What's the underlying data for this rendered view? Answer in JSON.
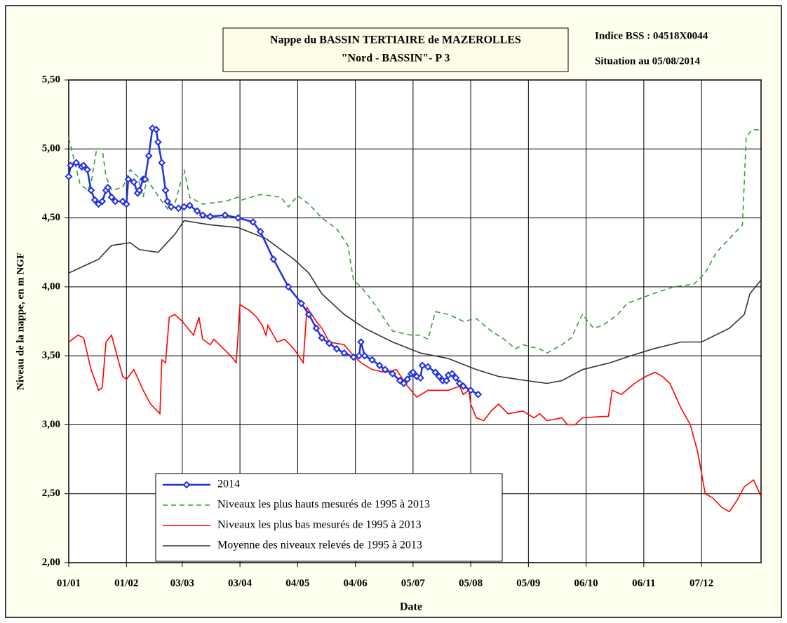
{
  "chart_data": {
    "type": "line",
    "title": "Nappe du BASSIN TERTIAIRE de MAZEROLLES",
    "subtitle": "\"Nord - BASSIN\"- P 3",
    "annotations": [
      "Indice BSS : 04518X0044",
      "Situation au 05/08/2014"
    ],
    "xlabel": "Date",
    "ylabel": "Niveau de la nappe, en m NGF",
    "xlim": [
      0,
      372
    ],
    "ylim": [
      2,
      5.5
    ],
    "xticks": [
      {
        "value": 0,
        "label": "01/01"
      },
      {
        "value": 31,
        "label": "01/02"
      },
      {
        "value": 61,
        "label": "03/03"
      },
      {
        "value": 92,
        "label": "03/04"
      },
      {
        "value": 123,
        "label": "04/05"
      },
      {
        "value": 154,
        "label": "04/06"
      },
      {
        "value": 185,
        "label": "05/07"
      },
      {
        "value": 216,
        "label": "05/08"
      },
      {
        "value": 247,
        "label": "05/09"
      },
      {
        "value": 278,
        "label": "06/10"
      },
      {
        "value": 309,
        "label": "06/11"
      },
      {
        "value": 340,
        "label": "07/12"
      }
    ],
    "yticks": [
      {
        "value": 2,
        "label": "2,00"
      },
      {
        "value": 2.5,
        "label": "2,50"
      },
      {
        "value": 3,
        "label": "3,00"
      },
      {
        "value": 3.5,
        "label": "3,50"
      },
      {
        "value": 4,
        "label": "4,00"
      },
      {
        "value": 4.5,
        "label": "4,50"
      },
      {
        "value": 5,
        "label": "5,00"
      },
      {
        "value": 5.5,
        "label": "5,50"
      }
    ],
    "grid": true,
    "legend": "lower left",
    "series": [
      {
        "name": "2014",
        "color": "#1f2fe0",
        "marker": "diamond",
        "dashed": false,
        "x": [
          0,
          1,
          4,
          7,
          8,
          10,
          12,
          14,
          16,
          18,
          20,
          21,
          23,
          25,
          29,
          31,
          32,
          35,
          37,
          38,
          40,
          41,
          43,
          45,
          47,
          48,
          50,
          52,
          53,
          55,
          59,
          62,
          65,
          69,
          72,
          76,
          84,
          91,
          99,
          103,
          110,
          118,
          125,
          129,
          133,
          136,
          140,
          144,
          148,
          153,
          156,
          157,
          159,
          163,
          167,
          170,
          174,
          178,
          180,
          182,
          184,
          185,
          187,
          189,
          190,
          193,
          197,
          199,
          201,
          203,
          204,
          206,
          208,
          210,
          212,
          216,
          220
        ],
        "values": [
          4.8,
          4.88,
          4.9,
          4.87,
          4.88,
          4.85,
          4.7,
          4.63,
          4.6,
          4.62,
          4.7,
          4.72,
          4.65,
          4.62,
          4.62,
          4.6,
          4.78,
          4.76,
          4.68,
          4.7,
          4.78,
          4.78,
          4.95,
          5.15,
          5.14,
          5.05,
          4.9,
          4.7,
          4.62,
          4.58,
          4.57,
          4.58,
          4.59,
          4.55,
          4.52,
          4.51,
          4.52,
          4.5,
          4.47,
          4.4,
          4.2,
          4.0,
          3.88,
          3.8,
          3.7,
          3.63,
          3.59,
          3.55,
          3.52,
          3.49,
          3.5,
          3.6,
          3.5,
          3.47,
          3.43,
          3.4,
          3.37,
          3.32,
          3.3,
          3.33,
          3.37,
          3.38,
          3.35,
          3.34,
          3.43,
          3.42,
          3.38,
          3.35,
          3.32,
          3.32,
          3.36,
          3.37,
          3.34,
          3.3,
          3.28,
          3.25,
          3.22
        ]
      },
      {
        "name": "Niveaux les plus hauts mesurés de  1995 à 2013",
        "color": "#3a9a3a",
        "dashed": true,
        "x": [
          0,
          6,
          10,
          12,
          15,
          18,
          20,
          23,
          29,
          33,
          37,
          40,
          42,
          50,
          54,
          57,
          62,
          65,
          72,
          84,
          91,
          93,
          103,
          114,
          118,
          123,
          129,
          136,
          144,
          150,
          153,
          157,
          163,
          168,
          174,
          184,
          189,
          193,
          197,
          204,
          212,
          219,
          227,
          234,
          240,
          244,
          253,
          257,
          265,
          270,
          276,
          282,
          287,
          295,
          300,
          314,
          325,
          336,
          342,
          348,
          355,
          362,
          364,
          367,
          372
        ],
        "values": [
          5.08,
          4.75,
          4.7,
          4.75,
          5.0,
          5.0,
          4.8,
          4.7,
          4.72,
          4.85,
          4.8,
          4.65,
          4.78,
          4.62,
          4.55,
          4.6,
          4.85,
          4.65,
          4.6,
          4.62,
          4.65,
          4.63,
          4.67,
          4.65,
          4.58,
          4.66,
          4.6,
          4.5,
          4.42,
          4.3,
          4.05,
          4.0,
          3.9,
          3.8,
          3.68,
          3.65,
          3.65,
          3.62,
          3.82,
          3.8,
          3.75,
          3.77,
          3.68,
          3.62,
          3.55,
          3.58,
          3.55,
          3.52,
          3.58,
          3.63,
          3.8,
          3.7,
          3.72,
          3.8,
          3.88,
          3.95,
          4.0,
          4.02,
          4.1,
          4.25,
          4.35,
          4.45,
          5.08,
          5.14,
          5.14
        ]
      },
      {
        "name": "Niveaux les plus bas mesurés de  1995 à 2013",
        "color": "#ff0000",
        "dashed": false,
        "x": [
          0,
          5,
          8,
          12,
          16,
          18,
          20,
          23,
          25,
          29,
          31,
          35,
          40,
          44,
          49,
          50,
          52,
          54,
          57,
          61,
          67,
          70,
          72,
          76,
          78,
          87,
          90,
          92,
          97,
          101,
          104,
          106,
          107,
          112,
          116,
          121,
          126,
          128,
          133,
          136,
          140,
          148,
          153,
          157,
          163,
          170,
          176,
          182,
          187,
          193,
          204,
          210,
          212,
          215,
          216,
          219,
          223,
          227,
          231,
          236,
          244,
          250,
          253,
          257,
          265,
          268,
          272,
          276,
          287,
          290,
          292,
          297,
          304,
          310,
          315,
          319,
          323,
          329,
          334,
          338,
          342,
          346,
          351,
          355,
          359,
          363,
          368,
          372
        ],
        "values": [
          3.6,
          3.65,
          3.63,
          3.4,
          3.25,
          3.27,
          3.6,
          3.65,
          3.55,
          3.35,
          3.33,
          3.4,
          3.25,
          3.15,
          3.08,
          3.47,
          3.45,
          3.78,
          3.8,
          3.75,
          3.65,
          3.78,
          3.62,
          3.58,
          3.62,
          3.5,
          3.45,
          3.87,
          3.83,
          3.78,
          3.72,
          3.65,
          3.72,
          3.6,
          3.62,
          3.55,
          3.45,
          3.85,
          3.75,
          3.7,
          3.6,
          3.58,
          3.5,
          3.45,
          3.4,
          3.38,
          3.4,
          3.28,
          3.2,
          3.25,
          3.25,
          3.28,
          3.22,
          3.25,
          3.15,
          3.05,
          3.03,
          3.1,
          3.15,
          3.08,
          3.1,
          3.05,
          3.08,
          3.03,
          3.05,
          3.0,
          3.0,
          3.05,
          3.06,
          3.06,
          3.25,
          3.22,
          3.3,
          3.35,
          3.38,
          3.35,
          3.3,
          3.12,
          3.0,
          2.8,
          2.5,
          2.47,
          2.4,
          2.37,
          2.45,
          2.55,
          2.6,
          2.48
        ]
      },
      {
        "name": "Moyenne des niveaux relevés de  1995 à 2013",
        "color": "#333333",
        "dashed": false,
        "x": [
          0,
          8,
          16,
          23,
          33,
          38,
          48,
          57,
          62,
          76,
          91,
          106,
          121,
          129,
          136,
          148,
          159,
          174,
          189,
          204,
          219,
          231,
          246,
          257,
          265,
          276,
          291,
          302,
          314,
          329,
          340,
          355,
          363,
          366,
          372
        ],
        "values": [
          4.1,
          4.15,
          4.2,
          4.3,
          4.32,
          4.27,
          4.25,
          4.38,
          4.48,
          4.45,
          4.43,
          4.35,
          4.2,
          4.1,
          3.95,
          3.8,
          3.7,
          3.6,
          3.52,
          3.48,
          3.4,
          3.35,
          3.32,
          3.3,
          3.32,
          3.4,
          3.45,
          3.5,
          3.55,
          3.6,
          3.6,
          3.7,
          3.8,
          3.95,
          4.05
        ]
      }
    ]
  }
}
